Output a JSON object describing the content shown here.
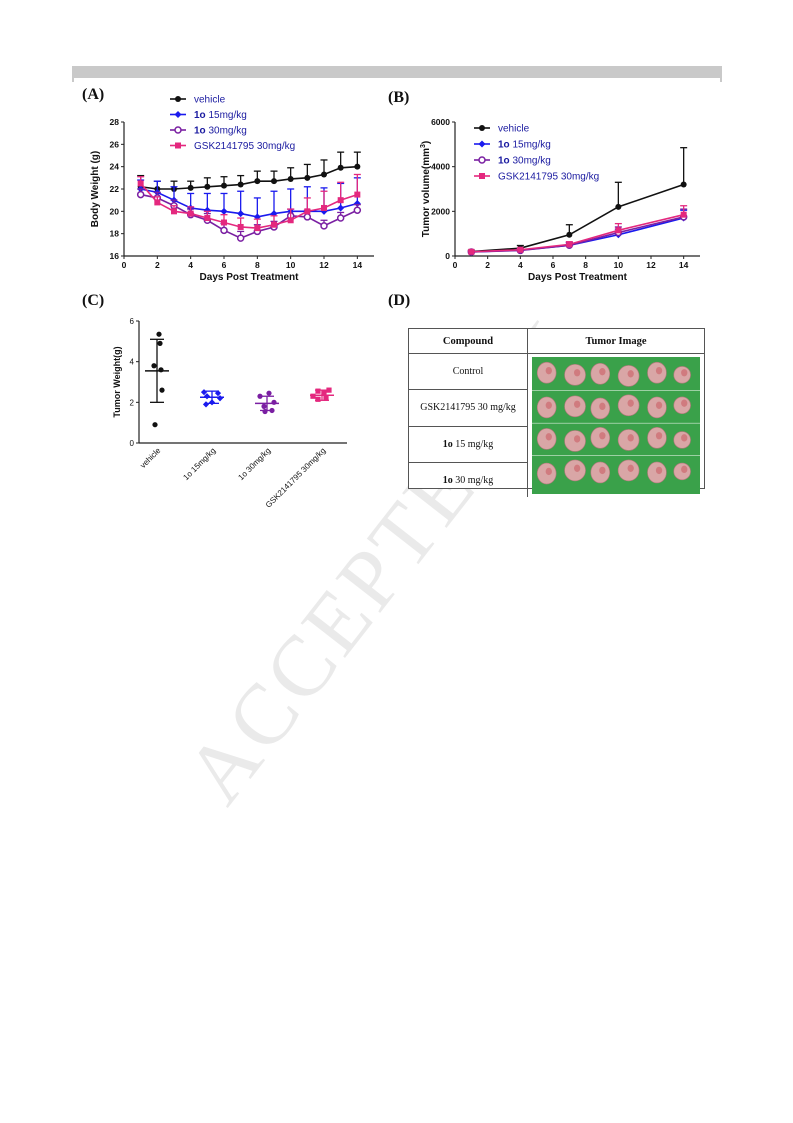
{
  "panels": {
    "a": "(A)",
    "b": "(B)",
    "c": "(C)",
    "d": "(D)"
  },
  "watermark": "ACCEPTED M",
  "colors": {
    "vehicle": "#111111",
    "1o_15": "#1a1aee",
    "1o_30": "#7a1fa2",
    "gsk": "#e4287e",
    "photo_bg": "#3aa14a",
    "tumor": "#d9a6a6"
  },
  "chart_data": [
    {
      "id": "A",
      "type": "line",
      "xlabel": "Days Post Treatment",
      "ylabel": "Body Weight (g)",
      "xlim": [
        0,
        15
      ],
      "ylim": [
        16,
        28
      ],
      "xticks": [
        0,
        2,
        4,
        6,
        8,
        10,
        12,
        14
      ],
      "yticks": [
        16,
        18,
        20,
        22,
        24,
        26,
        28
      ],
      "legend_position": "top",
      "x": [
        1,
        2,
        3,
        4,
        5,
        6,
        7,
        8,
        9,
        10,
        11,
        12,
        13,
        14
      ],
      "series": [
        {
          "name": "vehicle",
          "name_bold": "",
          "name_rest": "vehicle",
          "color": "#111111",
          "marker": "circle-filled",
          "values": [
            22.2,
            22.0,
            22.0,
            22.1,
            22.2,
            22.3,
            22.4,
            22.7,
            22.7,
            22.9,
            23.0,
            23.3,
            23.9,
            24.0
          ],
          "err": [
            1.0,
            0.7,
            0.7,
            0.6,
            0.8,
            0.8,
            0.8,
            0.9,
            0.9,
            1.0,
            1.2,
            1.3,
            1.4,
            1.3
          ]
        },
        {
          "name": "1o 15mg/kg",
          "name_bold": "1o",
          "name_rest": " 15mg/kg",
          "color": "#1a1aee",
          "marker": "diamond-filled",
          "values": [
            22.0,
            21.7,
            21.0,
            20.3,
            20.1,
            20.0,
            19.8,
            19.5,
            19.8,
            20.0,
            20.0,
            20.0,
            20.3,
            20.7
          ],
          "err": [
            0.8,
            1.0,
            1.2,
            1.3,
            1.5,
            1.6,
            2.0,
            1.7,
            2.0,
            2.0,
            2.2,
            2.1,
            2.2,
            2.3
          ]
        },
        {
          "name": "1o 30mg/kg",
          "name_bold": "1o",
          "name_rest": " 30mg/kg",
          "color": "#7a1fa2",
          "marker": "circle-open",
          "values": [
            21.5,
            21.2,
            20.5,
            19.7,
            19.2,
            18.3,
            17.6,
            18.2,
            18.6,
            19.6,
            19.5,
            18.7,
            19.4,
            20.1
          ],
          "err": [
            0.5,
            0.5,
            0.5,
            0.5,
            0.6,
            0.6,
            0.6,
            0.6,
            0.5,
            0.6,
            0.6,
            0.5,
            0.5,
            0.5
          ]
        },
        {
          "name": "GSK2141795 30mg/kg",
          "name_bold": "",
          "name_rest": "GSK2141795 30mg/kg",
          "color": "#e4287e",
          "marker": "square-filled",
          "values": [
            22.5,
            20.8,
            20.0,
            19.8,
            19.4,
            19.0,
            18.6,
            18.5,
            18.8,
            19.2,
            20.0,
            20.3,
            21.0,
            21.5
          ],
          "err": [
            0.6,
            0.5,
            0.5,
            0.6,
            0.6,
            0.7,
            0.8,
            0.8,
            0.8,
            1.0,
            1.2,
            1.5,
            1.6,
            1.8
          ]
        }
      ]
    },
    {
      "id": "B",
      "type": "line",
      "xlabel": "Days Post Treatment",
      "ylabel": "Tumor volume(mm",
      "ylabel_sup": "3",
      "ylabel_end": ")",
      "xlim": [
        0,
        15
      ],
      "ylim": [
        0,
        6000
      ],
      "xticks": [
        0,
        2,
        4,
        6,
        8,
        10,
        12,
        14
      ],
      "yticks": [
        0,
        2000,
        4000,
        6000
      ],
      "legend_position": "top",
      "x": [
        1,
        4,
        7,
        10,
        14
      ],
      "series": [
        {
          "name": "vehicle",
          "name_bold": "",
          "name_rest": "vehicle",
          "color": "#111111",
          "marker": "circle-filled",
          "values": [
            200,
            350,
            950,
            2200,
            3200
          ],
          "err": [
            60,
            120,
            450,
            1100,
            1650
          ]
        },
        {
          "name": "1o 15mg/kg",
          "name_bold": "1o",
          "name_rest": " 15mg/kg",
          "color": "#1a1aee",
          "marker": "diamond-filled",
          "values": [
            180,
            260,
            480,
            950,
            1700
          ],
          "err": [
            40,
            60,
            120,
            250,
            350
          ]
        },
        {
          "name": "1o 30mg/kg",
          "name_bold": "1o",
          "name_rest": " 30mg/kg",
          "color": "#7a1fa2",
          "marker": "circle-open",
          "values": [
            180,
            250,
            480,
            1050,
            1750
          ],
          "err": [
            40,
            60,
            120,
            250,
            350
          ]
        },
        {
          "name": "GSK2141795 30mg/kg",
          "name_bold": "",
          "name_rest": "GSK2141795 30mg/kg",
          "color": "#e4287e",
          "marker": "square-filled",
          "values": [
            190,
            280,
            520,
            1150,
            1850
          ],
          "err": [
            40,
            60,
            120,
            300,
            400
          ]
        }
      ]
    },
    {
      "id": "C",
      "type": "scatter",
      "ylabel": "Tumor Weight(g)",
      "ylim": [
        0,
        6
      ],
      "yticks": [
        0,
        2,
        4,
        6
      ],
      "categories": [
        "vehicle",
        "1o 15mg/kg",
        "1o 30mg/kg",
        "GSK2141795 30mg/kg"
      ],
      "groups": [
        {
          "name": "vehicle",
          "color": "#111111",
          "marker": "circle-filled",
          "mean": 3.55,
          "sd": 1.55,
          "points": [
            5.35,
            4.9,
            3.8,
            3.6,
            2.6,
            0.9
          ]
        },
        {
          "name": "1o 15mg/kg",
          "color": "#1a1aee",
          "marker": "diamond-filled",
          "mean": 2.25,
          "sd": 0.3,
          "points": [
            2.5,
            2.45,
            2.3,
            2.2,
            2.0,
            1.9
          ]
        },
        {
          "name": "1o 30mg/kg",
          "color": "#7a1fa2",
          "marker": "circle-filled",
          "mean": 1.95,
          "sd": 0.35,
          "points": [
            2.45,
            2.3,
            2.0,
            1.8,
            1.6,
            1.55
          ]
        },
        {
          "name": "GSK2141795 30mg/kg",
          "color": "#e4287e",
          "marker": "square-filled",
          "mean": 2.35,
          "sd": 0.25,
          "points": [
            2.6,
            2.55,
            2.5,
            2.3,
            2.2,
            2.15
          ]
        }
      ]
    },
    {
      "id": "D",
      "type": "table",
      "columns": [
        "Compound",
        "Tumor Image"
      ],
      "rows": [
        {
          "bold": "",
          "rest": "Control",
          "tumors": 6
        },
        {
          "bold": "",
          "rest": "GSK2141795 30 mg/kg",
          "tumors": 6
        },
        {
          "bold": "1o",
          "rest": " 15 mg/kg",
          "tumors": 6
        },
        {
          "bold": "1o",
          "rest": " 30 mg/kg",
          "tumors": 6
        }
      ]
    }
  ]
}
